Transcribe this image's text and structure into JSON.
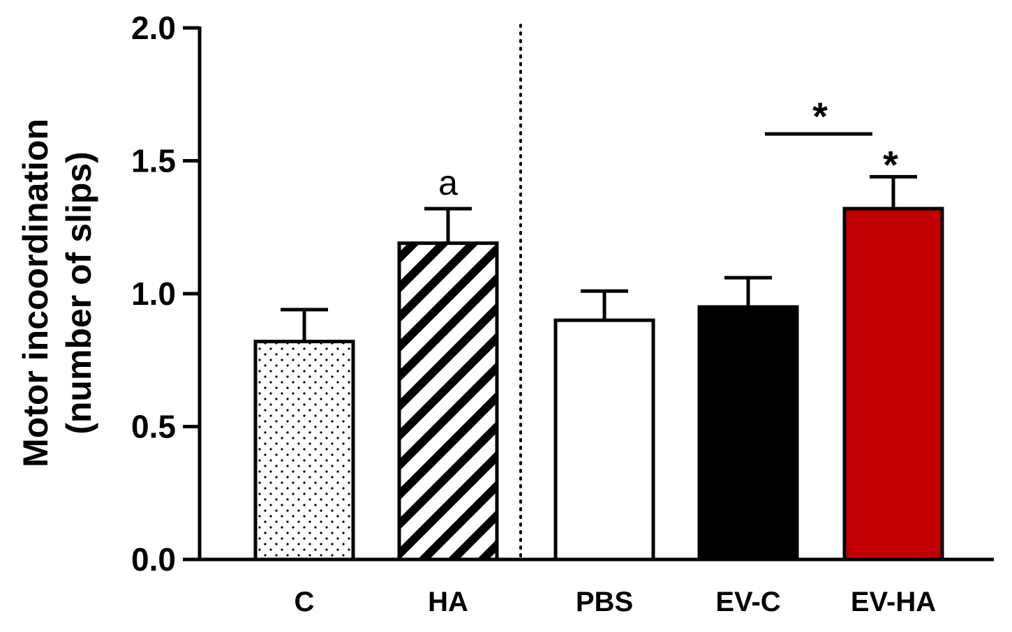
{
  "chart_data": {
    "type": "bar",
    "title": "",
    "xlabel": "",
    "ylabel_line1": "Motor incoordination",
    "ylabel_line2": "(number of slips)",
    "ylim": [
      0,
      2.0
    ],
    "yticks": [
      "0.0",
      "0.5",
      "1.0",
      "1.5",
      "2.0"
    ],
    "ytick_values": [
      0,
      0.5,
      1.0,
      1.5,
      2.0
    ],
    "grid": false,
    "legend": "none",
    "categories": [
      "C",
      "HA",
      "PBS",
      "EV-C",
      "EV-HA"
    ],
    "values": [
      0.82,
      1.19,
      0.9,
      0.95,
      1.32
    ],
    "errors": [
      0.12,
      0.13,
      0.11,
      0.11,
      0.12
    ],
    "fills": [
      "dotted",
      "hatched",
      "white",
      "#000000",
      "#c00000"
    ],
    "group_separator_after": "HA",
    "annotations": {
      "ha_letter": "a",
      "evha_star": "*",
      "bracket_star": "*",
      "bracket_from": "EV-C",
      "bracket_to": "EV-HA"
    }
  }
}
